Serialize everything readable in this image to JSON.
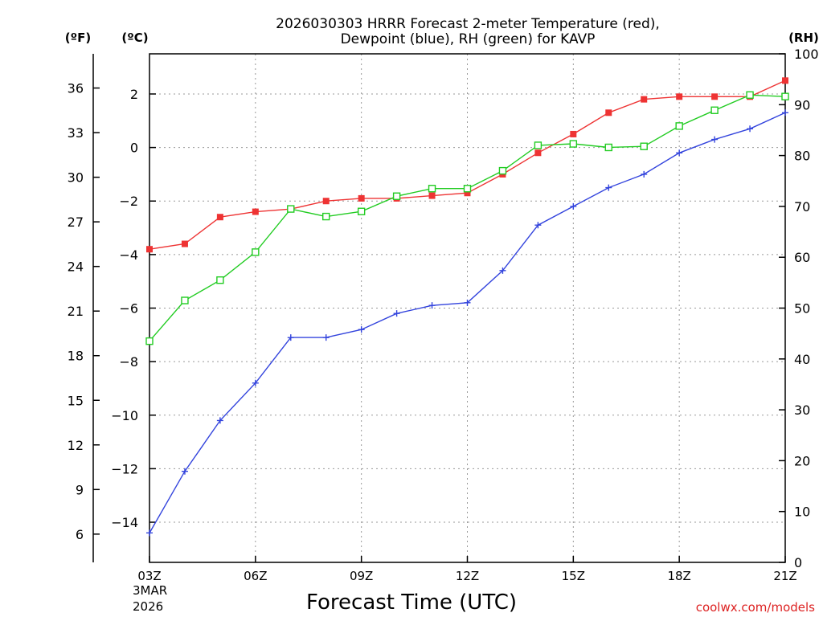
{
  "chart_data": {
    "type": "line",
    "title_line1": "2026030303 HRRR Forecast 2-meter Temperature (red),",
    "title_line2": "Dewpoint (blue), RH (green) for KAVP",
    "xlabel": "Forecast Time (UTC)",
    "x_ticks": [
      "03Z",
      "06Z",
      "09Z",
      "12Z",
      "15Z",
      "18Z",
      "21Z"
    ],
    "x_date_line1": "3MAR",
    "x_date_line2": "2026",
    "left_f_unit": "(ºF)",
    "left_c_unit": "(ºC)",
    "right_unit": "(RH)",
    "f_ticks": [
      "6",
      "9",
      "12",
      "15",
      "18",
      "21",
      "24",
      "27",
      "30",
      "33",
      "36"
    ],
    "c_ticks": [
      "-14",
      "-12",
      "-10",
      "-8",
      "-6",
      "-4",
      "-2",
      "0",
      "2"
    ],
    "rh_ticks": [
      "0",
      "10",
      "20",
      "30",
      "40",
      "50",
      "60",
      "70",
      "80",
      "90",
      "100"
    ],
    "c_range": [
      -15.5,
      3.5
    ],
    "rh_range": [
      0,
      100
    ],
    "hours": [
      3,
      4,
      5,
      6,
      7,
      8,
      9,
      10,
      11,
      12,
      13,
      14,
      15,
      16,
      17,
      18,
      19,
      20,
      21
    ],
    "series": [
      {
        "name": "Temperature",
        "color": "#ee3333",
        "marker": "filled-square",
        "axis": "c",
        "values": [
          -3.8,
          -3.6,
          -2.6,
          -2.4,
          -2.3,
          -2.0,
          -1.9,
          -1.9,
          -1.8,
          -1.7,
          -1.0,
          -0.2,
          0.5,
          1.3,
          1.8,
          1.9,
          1.9,
          1.9,
          2.5
        ]
      },
      {
        "name": "Dewpoint",
        "color": "#3344dd",
        "marker": "plus",
        "axis": "c",
        "values": [
          -14.4,
          -12.1,
          -10.2,
          -8.8,
          -7.1,
          -7.1,
          -6.8,
          -6.2,
          -5.9,
          -5.8,
          -4.6,
          -2.9,
          -2.2,
          -1.5,
          -1.0,
          -0.2,
          0.3,
          0.7,
          1.3
        ]
      },
      {
        "name": "RH",
        "color": "#22cc22",
        "marker": "open-square",
        "axis": "rh",
        "values": [
          43.5,
          51.5,
          55.5,
          61.0,
          69.5,
          68.0,
          69.0,
          72.0,
          73.5,
          73.5,
          77.0,
          82.0,
          82.3,
          81.6,
          81.8,
          85.8,
          88.9,
          91.9,
          91.6
        ]
      }
    ]
  },
  "footer": {
    "credit": "coolwx.com/models"
  }
}
